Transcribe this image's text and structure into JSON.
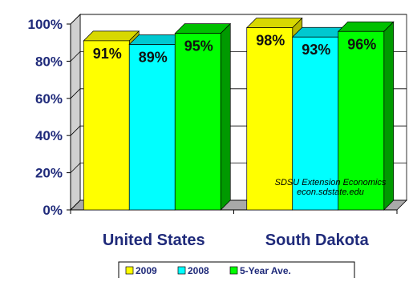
{
  "chart_data": {
    "type": "bar",
    "categories": [
      "United States",
      "South Dakota"
    ],
    "series": [
      {
        "name": "2009",
        "values": [
          91,
          98
        ],
        "labels": [
          "91%",
          "98%"
        ],
        "color": "#ffff00",
        "top_color": "#d8d800",
        "side_color": "#b8b800"
      },
      {
        "name": "2008",
        "values": [
          89,
          93
        ],
        "labels": [
          "89%",
          "93%"
        ],
        "color": "#00ffff",
        "top_color": "#00c8d0",
        "side_color": "#00a8b0"
      },
      {
        "name": "5-Year Ave.",
        "values": [
          95,
          96
        ],
        "labels": [
          "95%",
          "96%"
        ],
        "color": "#00ff00",
        "top_color": "#00c000",
        "side_color": "#009a00"
      }
    ],
    "yticks": [
      "0%",
      "20%",
      "40%",
      "60%",
      "80%",
      "100%"
    ],
    "ylim": [
      0,
      100
    ],
    "grid": true,
    "legend": "bottom",
    "annotation": [
      "SDSU Extension Economics",
      "econ.sdstate.edu"
    ],
    "colors": {
      "text": "#1f2a7a",
      "wall": "#ffffff",
      "floor": "#a9a9a9",
      "gridline": "#000000"
    }
  }
}
